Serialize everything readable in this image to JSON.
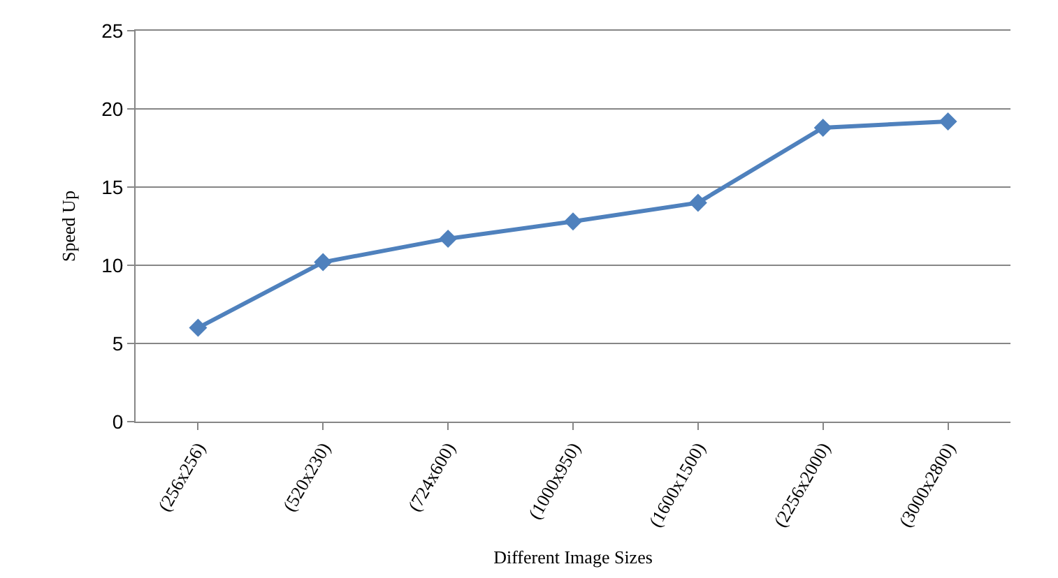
{
  "chart_data": {
    "type": "line",
    "xlabel": "Different Image Sizes",
    "ylabel": "Speed Up",
    "categories": [
      "(256x256)",
      "(520x230)",
      "(724x600)",
      "(1000x950)",
      "(1600x1500)",
      "(2256x2000)",
      "(3000x2800)"
    ],
    "series": [
      {
        "color": "#4f81bd",
        "values": [
          6.0,
          10.2,
          11.7,
          12.8,
          14.0,
          18.8,
          19.2
        ]
      }
    ],
    "ylim": [
      0,
      25
    ],
    "yticks": [
      0,
      5,
      10,
      15,
      20,
      25
    ],
    "grid": "y",
    "marker": "diamond",
    "line_style": "solid"
  }
}
